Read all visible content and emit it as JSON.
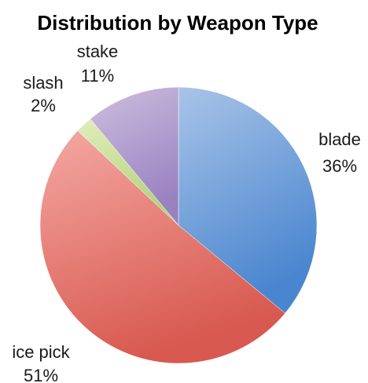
{
  "chart_data": {
    "type": "pie",
    "title": "Distribution by Weapon Type",
    "slices": [
      {
        "name": "blade",
        "value": 36,
        "label": "36%",
        "color_light": "#a9c4e8",
        "color_dark": "#4a86cf"
      },
      {
        "name": "ice pick",
        "value": 51,
        "label": "51%",
        "color_light": "#f4a8a3",
        "color_dark": "#d8594f"
      },
      {
        "name": "slash",
        "value": 2,
        "label": "2%",
        "color_light": "#e1edbd",
        "color_dark": "#b3d37a"
      },
      {
        "name": "stake",
        "value": 11,
        "label": "11%",
        "color_light": "#cdbfdf",
        "color_dark": "#9a82c1"
      }
    ],
    "start_angle": "12 o'clock",
    "direction": "clockwise",
    "legend": "none"
  }
}
